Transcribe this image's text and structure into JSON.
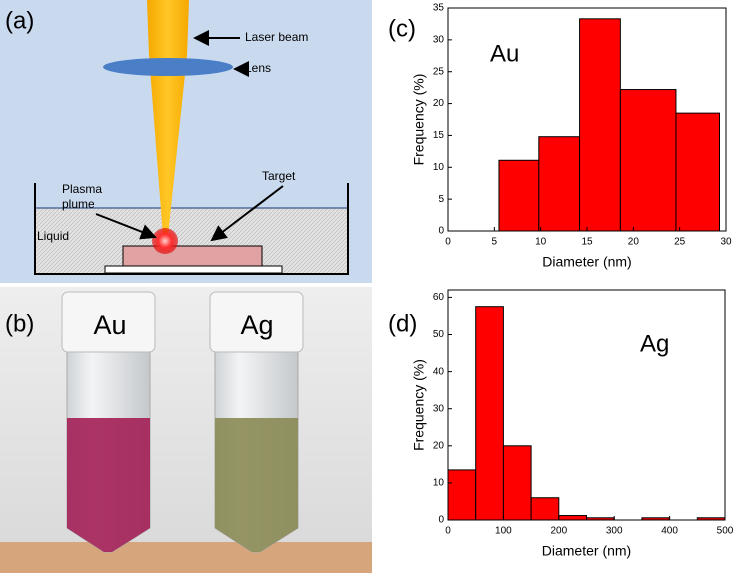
{
  "panels": {
    "a": {
      "label": "(a)",
      "laser": "Laser beam",
      "lens": "Lens",
      "plasma": [
        "Plasma",
        "plume"
      ],
      "target": "Target",
      "liquid": "Liquid"
    },
    "b": {
      "label": "(b)",
      "vials": [
        "Au",
        "Ag"
      ]
    }
  },
  "chart_data": [
    {
      "type": "histogram",
      "panel_label": "(c)",
      "annotation": "Au",
      "xlabel": "Diameter (nm)",
      "ylabel": "Frequency (%)",
      "bins": [
        5.5,
        9.8,
        14.2,
        18.6,
        24.6,
        29.3
      ],
      "values": [
        11.1,
        14.8,
        33.3,
        22.2,
        18.5
      ],
      "color": "#ff0000",
      "xlim": [
        0,
        30
      ],
      "xticks": [
        0,
        5,
        10,
        15,
        20,
        25,
        30
      ],
      "ylim": [
        0,
        35
      ],
      "yticks": [
        0,
        5,
        10,
        15,
        20,
        25,
        30,
        35
      ]
    },
    {
      "type": "histogram",
      "panel_label": "(d)",
      "annotation": "Ag",
      "xlabel": "Diameter (nm)",
      "ylabel": "Frequency (%)",
      "bins": [
        0,
        50,
        100,
        150,
        200,
        250,
        300,
        350,
        400,
        450,
        500
      ],
      "values": [
        13.5,
        57.5,
        20,
        6,
        1.2,
        0.6,
        0,
        0.6,
        0,
        0.6
      ],
      "color": "#ff0000",
      "xlim": [
        0,
        500
      ],
      "xticks": [
        0,
        100,
        200,
        300,
        400,
        500
      ],
      "ylim": [
        0,
        62
      ],
      "yticks": [
        0,
        10,
        20,
        30,
        40,
        50,
        60
      ]
    }
  ]
}
